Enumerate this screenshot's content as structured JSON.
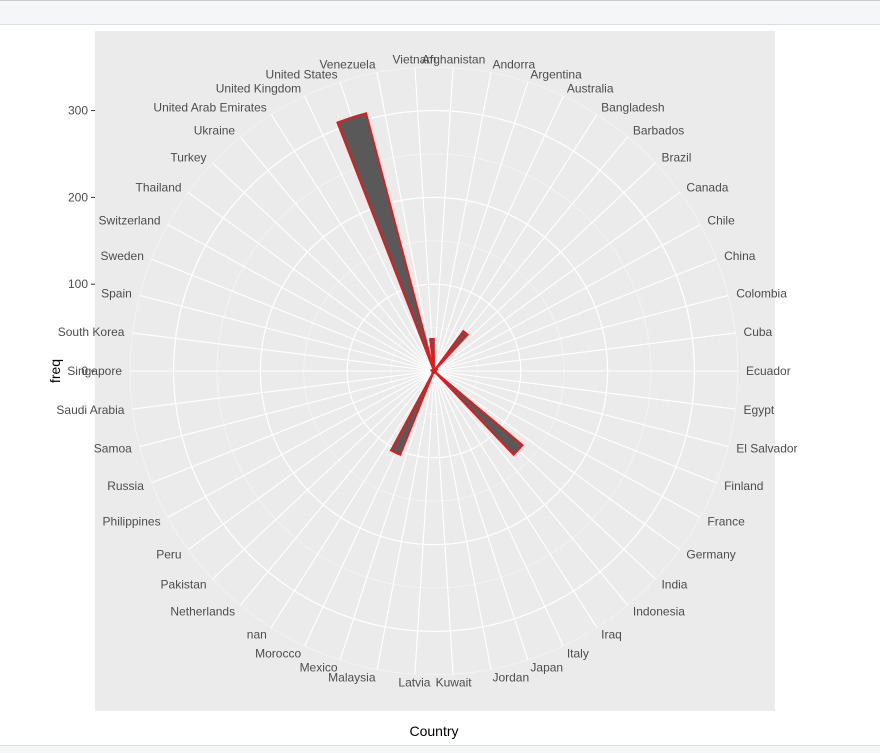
{
  "chart_data": {
    "type": "bar",
    "coord": "polar",
    "xlabel": "Country",
    "ylabel": "freq",
    "ylim": [
      0,
      300
    ],
    "yticks": [
      0,
      100,
      200,
      300
    ],
    "grid": true,
    "bar_fill": "#595959",
    "bar_outline": "#e31a1c",
    "panel_background": "#ebebeb",
    "categories": [
      "Afghanistan",
      "Andorra",
      "Argentina",
      "Australia",
      "Bangladesh",
      "Barbados",
      "Brazil",
      "Canada",
      "Chile",
      "China",
      "Colombia",
      "Cuba",
      "Ecuador",
      "Egypt",
      "El Salvador",
      "Finland",
      "France",
      "Germany",
      "India",
      "Indonesia",
      "Iraq",
      "Italy",
      "Japan",
      "Jordan",
      "Kuwait",
      "Latvia",
      "Malaysia",
      "Mexico",
      "Morocco",
      "nan",
      "Netherlands",
      "Pakistan",
      "Peru",
      "Philippines",
      "Russia",
      "Samoa",
      "Saudi Arabia",
      "Singapore",
      "South Korea",
      "Spain",
      "Sweden",
      "Switzerland",
      "Thailand",
      "Turkey",
      "Ukraine",
      "United Arab Emirates",
      "United Kingdom",
      "United States",
      "Venezuela",
      "Vietnam"
    ],
    "values": [
      1,
      1,
      1,
      1,
      1,
      57,
      1,
      2,
      4,
      2,
      1,
      1,
      1,
      1,
      2,
      1,
      1,
      2,
      133,
      2,
      1,
      1,
      1,
      2,
      2,
      1,
      1,
      1,
      104,
      3,
      1,
      1,
      1,
      1,
      2,
      1,
      1,
      1,
      1,
      3,
      1,
      1,
      1,
      1,
      2,
      1,
      1,
      307,
      1,
      37
    ]
  }
}
